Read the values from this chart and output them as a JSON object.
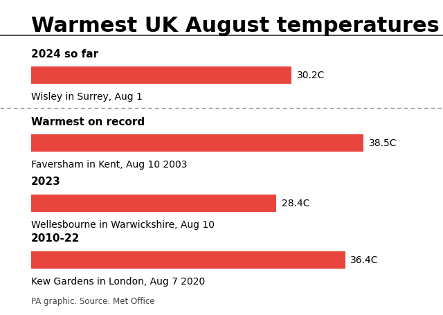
{
  "title": "Warmest UK August temperatures",
  "title_fontsize": 22,
  "bar_color": "#E8453C",
  "bg_color": "#FFFFFF",
  "text_color": "#000000",
  "source_text": "PA graphic. Source: Met Office",
  "max_temp": 38.5,
  "sections": [
    {
      "label": "2024 so far",
      "value": 30.2,
      "value_label": "30.2C",
      "sublabel": "Wisley in Surrey, Aug 1",
      "bold_label": true,
      "separator_after": true
    },
    {
      "label": "Warmest on record",
      "value": 38.5,
      "value_label": "38.5C",
      "sublabel": "Faversham in Kent, Aug 10 2003",
      "bold_label": true,
      "separator_after": false
    },
    {
      "label": "2023",
      "value": 28.4,
      "value_label": "28.4C",
      "sublabel": "Wellesbourne in Warwickshire, Aug 10",
      "bold_label": true,
      "separator_after": false
    },
    {
      "label": "2010-22",
      "value": 36.4,
      "value_label": "36.4C",
      "sublabel": "Kew Gardens in London, Aug 7 2020",
      "bold_label": true,
      "separator_after": false
    }
  ]
}
